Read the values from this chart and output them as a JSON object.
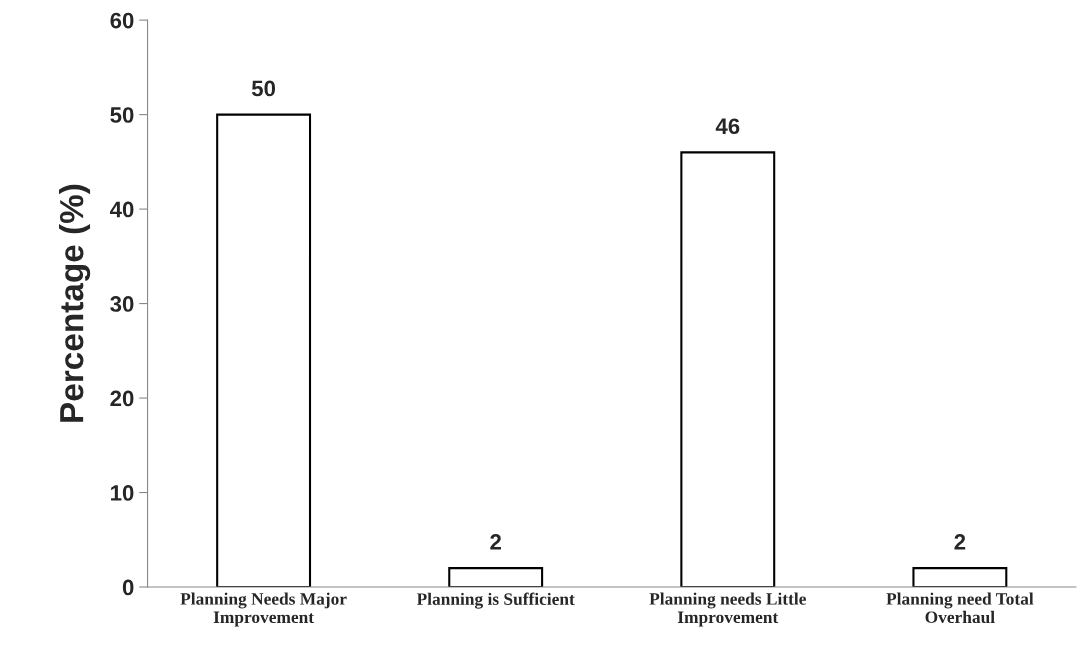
{
  "chart_data": {
    "type": "bar",
    "ylabel": "Percentage (%)",
    "categories": [
      "Planning Needs Major\nImprovement",
      "Planning is Sufficient",
      "Planning needs Little\nImprovement",
      "Planning need Total\nOverhaul"
    ],
    "values": [
      50,
      2,
      46,
      2
    ],
    "color": "#ffffff",
    "ylim": [
      0,
      60
    ],
    "yticks": [
      0,
      10,
      20,
      30,
      40,
      50,
      60
    ],
    "grid": false,
    "data_labels": true
  }
}
